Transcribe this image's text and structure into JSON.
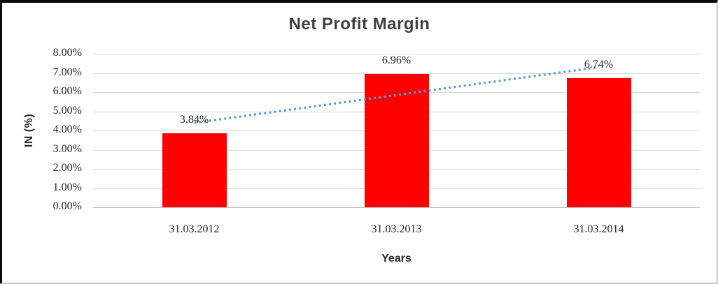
{
  "figure": {
    "background": "#ffffff",
    "border_dark": "#0a0a0a",
    "border_light": "#c9c9c9"
  },
  "chart_data": {
    "type": "bar",
    "title": "Net Profit Margin",
    "xlabel": "Years",
    "ylabel": "IN (%)",
    "categories": [
      "31.03.2012",
      "31.03.2013",
      "31.03.2014"
    ],
    "series": [
      {
        "name": "Net Profit Margin",
        "color": "#ff0000",
        "values": [
          3.84,
          6.96,
          6.74
        ]
      }
    ],
    "data_labels": [
      "3.84%",
      "6.96%",
      "6.74%"
    ],
    "ylim": [
      0,
      8
    ],
    "ytick_labels": [
      "0.00%",
      "1.00%",
      "2.00%",
      "3.00%",
      "4.00%",
      "5.00%",
      "6.00%",
      "7.00%",
      "8.00%"
    ],
    "grid": true,
    "legend": "none",
    "trendline": {
      "type": "linear",
      "style": "dotted",
      "color": "#5b9bd5"
    },
    "colors": {
      "bar": "#ff0000",
      "trendline": "#5b9bd5",
      "gridline": "#d9d9d9",
      "axis_line": "#bfbfbf",
      "title_text": "#404040",
      "label_text": "#262626"
    }
  }
}
